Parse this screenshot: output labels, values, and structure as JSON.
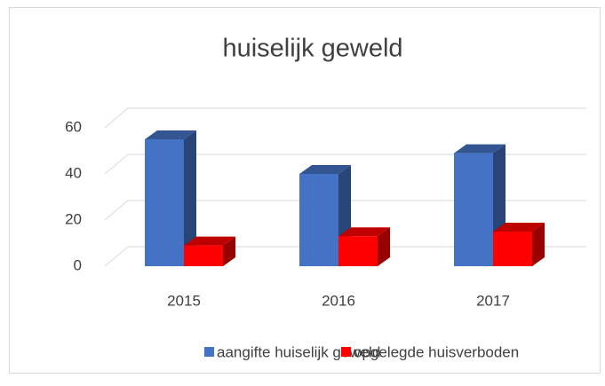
{
  "chart_data": {
    "type": "bar3d",
    "title": "huiselijk geweld",
    "categories": [
      "2015",
      "2016",
      "2017"
    ],
    "series": [
      {
        "name": "aangifte huiselijk geweld",
        "color": "#4472c4",
        "values": [
          55,
          40,
          49
        ]
      },
      {
        "name": "opgelegde huisverboden",
        "color": "#ff0000",
        "values": [
          9,
          13,
          15
        ]
      }
    ],
    "ylim": [
      0,
      60
    ],
    "yticks": [
      0,
      20,
      40,
      60
    ],
    "grid": true,
    "legend": "bottom"
  }
}
